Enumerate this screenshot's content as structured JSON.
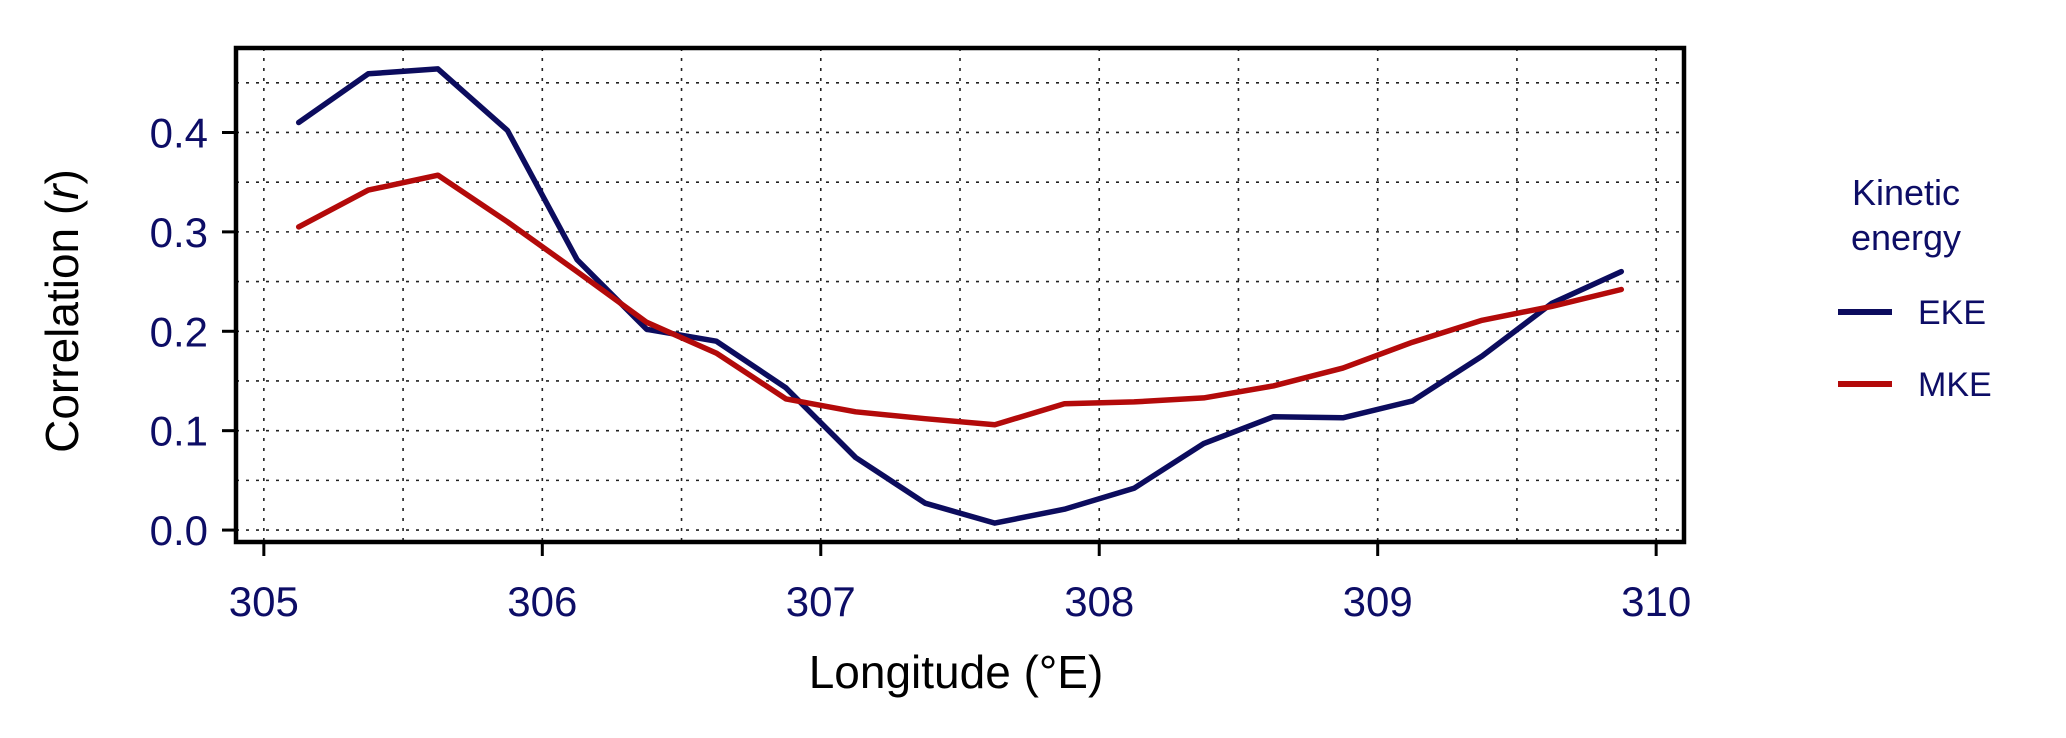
{
  "chart_data": {
    "type": "line",
    "xlabel": "Longitude (°E)",
    "ylabel_prefix": "Correlation (",
    "ylabel_var": "r",
    "ylabel_suffix": ")",
    "xlim": [
      304.9,
      310.1
    ],
    "ylim": [
      -0.012,
      0.485
    ],
    "xticks": [
      305,
      306,
      307,
      308,
      309,
      310
    ],
    "xtick_labels": [
      "305",
      "306",
      "307",
      "308",
      "309",
      "310"
    ],
    "yticks": [
      0.0,
      0.1,
      0.2,
      0.3,
      0.4
    ],
    "ytick_labels": [
      "0.0",
      "0.1",
      "0.2",
      "0.3",
      "0.4"
    ],
    "x_minor_grid": [
      305.5,
      306.5,
      307.5,
      308.5,
      309.5
    ],
    "y_minor_grid": [
      0.05,
      0.15,
      0.25,
      0.35,
      0.45
    ],
    "grid": true,
    "legend": {
      "title_line1": "Kinetic",
      "title_line2": "energy",
      "placement": "right-outside"
    },
    "x": [
      305.125,
      305.375,
      305.625,
      305.875,
      306.125,
      306.375,
      306.625,
      306.875,
      307.125,
      307.375,
      307.625,
      307.875,
      308.125,
      308.375,
      308.625,
      308.875,
      309.125,
      309.375,
      309.625,
      309.875
    ],
    "series": [
      {
        "name": "EKE",
        "color": "#0c0c5e",
        "values": [
          0.41,
          0.459,
          0.464,
          0.402,
          0.272,
          0.202,
          0.19,
          0.143,
          0.073,
          0.027,
          0.007,
          0.021,
          0.042,
          0.087,
          0.114,
          0.113,
          0.13,
          0.175,
          0.228,
          0.26
        ]
      },
      {
        "name": "MKE",
        "color": "#b30a0a",
        "values": [
          0.305,
          0.342,
          0.357,
          0.31,
          0.26,
          0.209,
          0.178,
          0.132,
          0.119,
          0.112,
          0.106,
          0.127,
          0.129,
          0.133,
          0.145,
          0.163,
          0.189,
          0.211,
          0.225,
          0.242
        ]
      }
    ]
  }
}
